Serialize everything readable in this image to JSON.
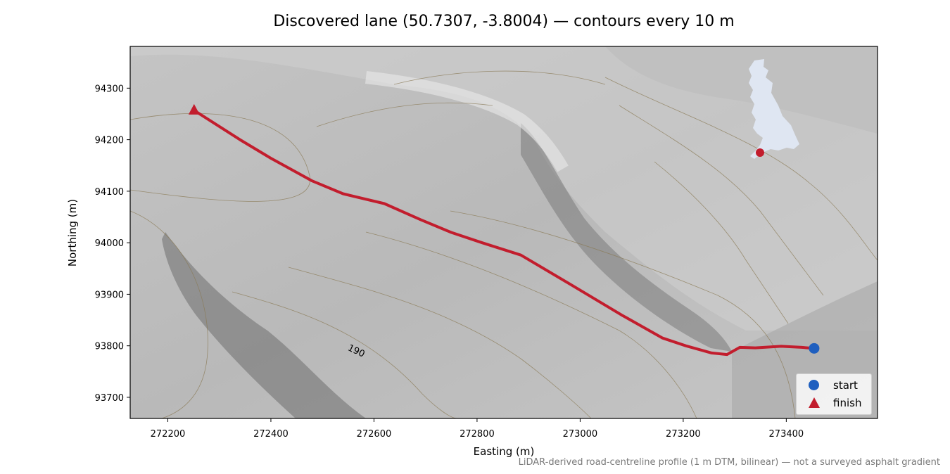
{
  "title": "Discovered lane (50.7307, -3.8004) — contours every 10 m",
  "footnote": "LiDAR-derived road-centreline profile (1 m DTM, bilinear) — not a surveyed asphalt gradient",
  "colors": {
    "route": "#c21d2d",
    "start_marker": "#1f5fbf",
    "finish_marker": "#c21d2d",
    "inset_landmass": "#dfe6f2",
    "hillshade_base": "#b8b8b8",
    "contour": "#8a7a55"
  },
  "chart_data": {
    "type": "map",
    "xlabel": "Easting (m)",
    "ylabel": "Northing (m)",
    "xlim": [
      272127,
      273577
    ],
    "ylim": [
      93659,
      94381
    ],
    "xticks": [
      272200,
      272400,
      272600,
      272800,
      273000,
      273200,
      273400
    ],
    "yticks": [
      93700,
      93800,
      93900,
      94000,
      94100,
      94200,
      94300
    ],
    "contour_interval_m": 10,
    "contour_labels": [
      {
        "text": "190",
        "x": 272548,
        "y": 93792
      }
    ],
    "route": {
      "color": "#c21d2d",
      "points": [
        [
          273454,
          93795
        ],
        [
          273430,
          93797
        ],
        [
          273390,
          93799
        ],
        [
          273340,
          93796
        ],
        [
          273310,
          93797
        ],
        [
          273285,
          93783
        ],
        [
          273255,
          93786
        ],
        [
          273205,
          93800
        ],
        [
          273160,
          93815
        ],
        [
          273080,
          93860
        ],
        [
          272980,
          93920
        ],
        [
          272885,
          93976
        ],
        [
          272810,
          94000
        ],
        [
          272750,
          94020
        ],
        [
          272690,
          94045
        ],
        [
          272620,
          94076
        ],
        [
          272540,
          94095
        ],
        [
          272480,
          94120
        ],
        [
          272400,
          94164
        ],
        [
          272340,
          94200
        ],
        [
          272251,
          94257
        ]
      ]
    },
    "markers": [
      {
        "name": "start",
        "x": 273454,
        "y": 93795,
        "color": "#1f5fbf",
        "shape": "circle"
      },
      {
        "name": "finish",
        "x": 272251,
        "y": 94257,
        "color": "#c21d2d",
        "shape": "triangle"
      }
    ],
    "legend": {
      "placement": "lower-right",
      "entries": [
        "start",
        "finish"
      ]
    },
    "inset": {
      "description_shape": "great-britain-outline",
      "placement": "top-right",
      "location_marker_color": "#c21d2d"
    }
  }
}
